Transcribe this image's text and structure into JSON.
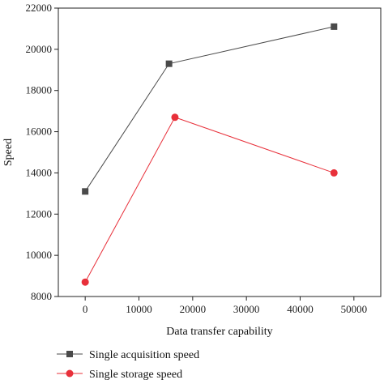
{
  "chart_data": {
    "type": "line",
    "title": "",
    "xlabel": "Data transfer capability",
    "ylabel": "Speed",
    "xlim": [
      -5000,
      55000
    ],
    "ylim": [
      8000,
      22000
    ],
    "x_ticks": [
      0,
      10000,
      20000,
      30000,
      40000,
      50000
    ],
    "y_ticks": [
      8000,
      10000,
      12000,
      14000,
      16000,
      18000,
      20000,
      22000
    ],
    "legend_position": "bottom-left, below plot",
    "series": [
      {
        "name": "Single acquisition speed",
        "color": "#4a4a4a",
        "marker": "square",
        "x": [
          0,
          15600,
          46300
        ],
        "y": [
          13100,
          19300,
          21100
        ]
      },
      {
        "name": "Single storage speed",
        "color": "#e8303a",
        "marker": "circle",
        "x": [
          0,
          16700,
          46300
        ],
        "y": [
          8700,
          16700,
          14000
        ]
      }
    ]
  }
}
